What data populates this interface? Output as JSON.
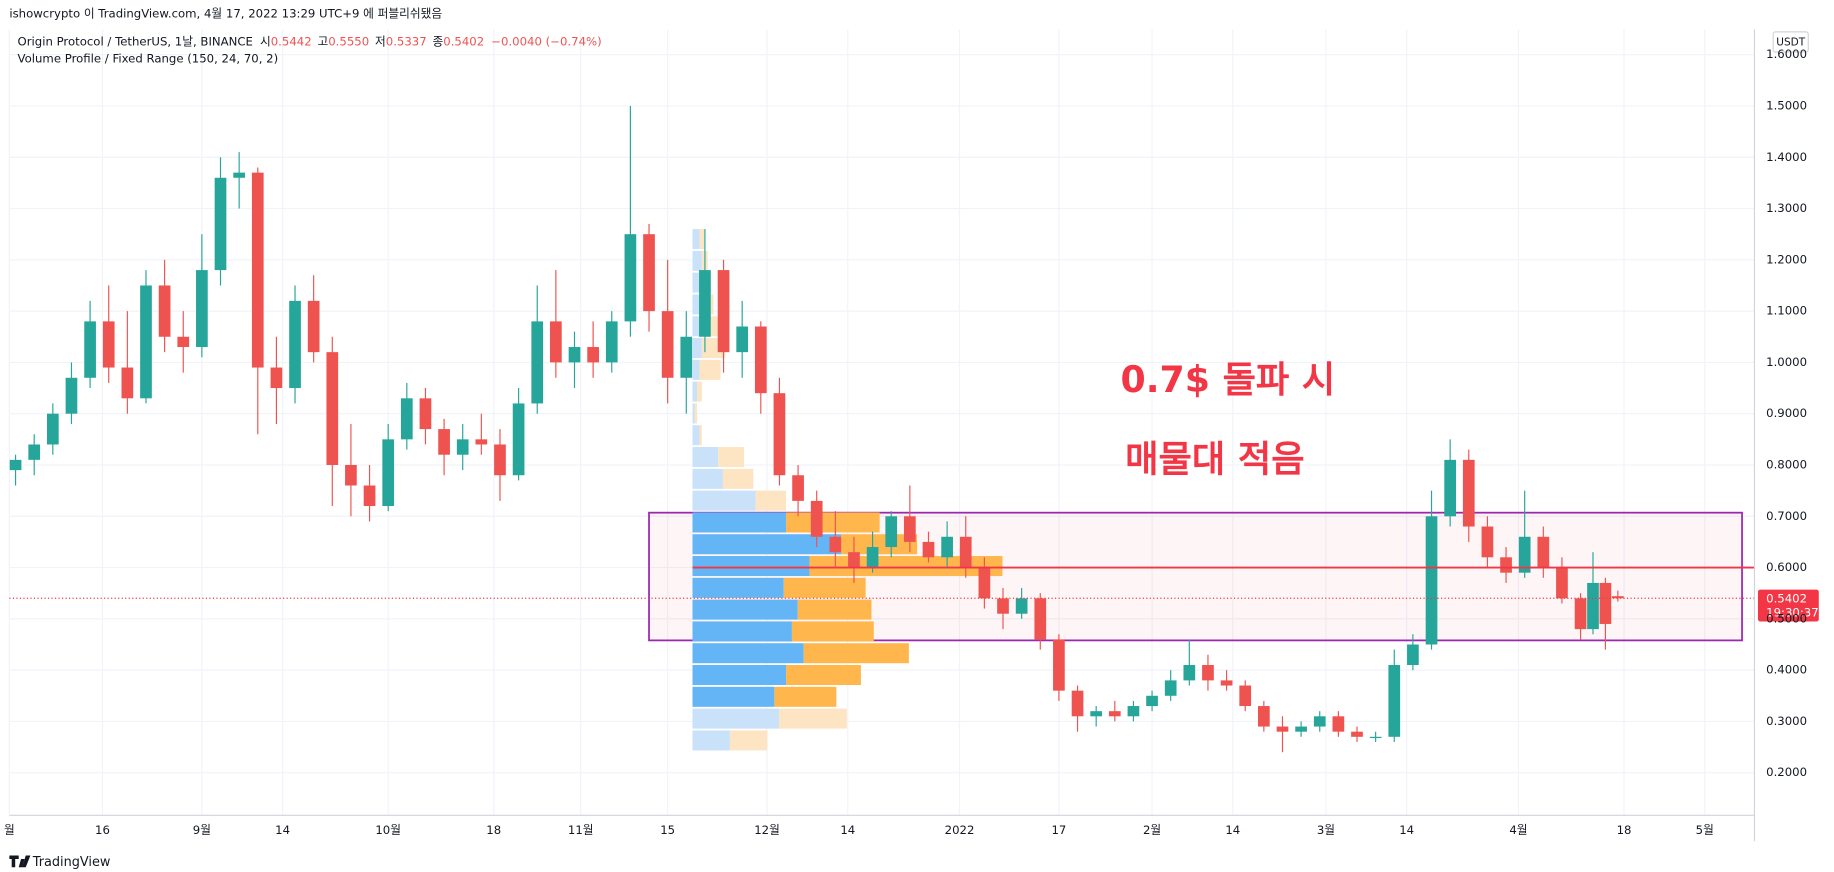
{
  "header": {
    "published": "ishowcrypto 이 TradingView.com, 4월 17, 2022 13:29 UTC+9 에 퍼블리쉬됐음"
  },
  "footer": {
    "brand": "TradingView"
  },
  "chart_data": {
    "type": "candlestick",
    "title": "Origin Protocol / TetherUS, 1날, BINANCE",
    "legend": {
      "open_label": "시",
      "open": "0.5442",
      "high_label": "고",
      "high": "0.5550",
      "low_label": "저",
      "low": "0.5337",
      "close_label": "종",
      "close": "0.5402",
      "change": "−0.0040 (−0.74%)"
    },
    "indicator": "Volume Profile / Fixed Range (150, 24, 70, 2)",
    "annotations": [
      "0.7$ 돌파 시",
      "매물대 적음"
    ],
    "currency": "USDT",
    "countdown": "19:30:37",
    "up_color": "#26a69a",
    "down_color": "#ef5350",
    "x": [
      1,
      4,
      7,
      10,
      13,
      16,
      19,
      22,
      25,
      28,
      31,
      34,
      37,
      40,
      43,
      46,
      49,
      52,
      55,
      58,
      61,
      64,
      67,
      70,
      73,
      76,
      79,
      82,
      85,
      88,
      91,
      94,
      97,
      100,
      103,
      106,
      109,
      112,
      115,
      118,
      121,
      124,
      127,
      130,
      133,
      136,
      139,
      142,
      145,
      148,
      151,
      154,
      157,
      160,
      163,
      166,
      169,
      172,
      175,
      178,
      181,
      184,
      187,
      190,
      193,
      196,
      199,
      202,
      205,
      208,
      211,
      214,
      217,
      220,
      223,
      226,
      229,
      232,
      235,
      238,
      241,
      244,
      247,
      250,
      253,
      255,
      257,
      259
    ],
    "open": [
      0.79,
      0.81,
      0.84,
      0.9,
      0.97,
      1.08,
      0.99,
      0.93,
      1.15,
      1.05,
      1.03,
      1.18,
      1.36,
      1.37,
      0.99,
      0.95,
      1.12,
      1.02,
      0.8,
      0.76,
      0.72,
      0.85,
      0.93,
      0.87,
      0.82,
      0.85,
      0.84,
      0.78,
      0.92,
      1.08,
      1.0,
      1.03,
      1.0,
      1.08,
      1.25,
      1.1,
      0.97,
      1.05,
      1.18,
      1.02,
      1.07,
      0.94,
      0.78,
      0.73,
      0.66,
      0.63,
      0.6,
      0.64,
      0.7,
      0.65,
      0.62,
      0.66,
      0.6,
      0.54,
      0.51,
      0.54,
      0.46,
      0.36,
      0.31,
      0.32,
      0.31,
      0.33,
      0.35,
      0.38,
      0.41,
      0.38,
      0.37,
      0.33,
      0.29,
      0.28,
      0.29,
      0.31,
      0.28,
      0.27,
      0.27,
      0.41,
      0.45,
      0.7,
      0.81,
      0.68,
      0.62,
      0.59,
      0.66,
      0.6,
      0.54,
      0.48,
      0.57,
      0.5442
    ],
    "high": [
      0.82,
      0.86,
      0.92,
      1.0,
      1.12,
      1.15,
      1.1,
      1.18,
      1.2,
      1.1,
      1.25,
      1.4,
      1.41,
      1.38,
      1.05,
      1.15,
      1.17,
      1.05,
      0.88,
      0.8,
      0.88,
      0.96,
      0.95,
      0.89,
      0.88,
      0.9,
      0.87,
      0.95,
      1.15,
      1.18,
      1.06,
      1.08,
      1.1,
      1.5,
      1.27,
      1.2,
      1.1,
      1.26,
      1.2,
      1.12,
      1.08,
      0.97,
      0.8,
      0.75,
      0.71,
      0.66,
      0.67,
      0.71,
      0.76,
      0.67,
      0.69,
      0.7,
      0.62,
      0.56,
      0.56,
      0.55,
      0.47,
      0.37,
      0.33,
      0.34,
      0.34,
      0.36,
      0.4,
      0.46,
      0.43,
      0.4,
      0.38,
      0.34,
      0.31,
      0.3,
      0.32,
      0.32,
      0.29,
      0.28,
      0.44,
      0.47,
      0.75,
      0.85,
      0.83,
      0.7,
      0.64,
      0.75,
      0.68,
      0.62,
      0.55,
      0.63,
      0.58,
      0.555
    ],
    "low": [
      0.76,
      0.78,
      0.82,
      0.88,
      0.95,
      0.96,
      0.9,
      0.92,
      1.02,
      0.98,
      1.01,
      1.15,
      1.3,
      0.86,
      0.88,
      0.92,
      1.0,
      0.72,
      0.7,
      0.69,
      0.71,
      0.83,
      0.84,
      0.78,
      0.79,
      0.82,
      0.73,
      0.77,
      0.9,
      0.97,
      0.95,
      0.97,
      0.98,
      1.05,
      1.06,
      0.92,
      0.9,
      1.02,
      0.98,
      0.97,
      0.9,
      0.76,
      0.7,
      0.64,
      0.6,
      0.57,
      0.59,
      0.62,
      0.63,
      0.61,
      0.6,
      0.58,
      0.52,
      0.48,
      0.5,
      0.44,
      0.34,
      0.28,
      0.29,
      0.3,
      0.3,
      0.32,
      0.34,
      0.37,
      0.36,
      0.36,
      0.32,
      0.28,
      0.24,
      0.27,
      0.28,
      0.27,
      0.26,
      0.26,
      0.26,
      0.4,
      0.44,
      0.68,
      0.65,
      0.6,
      0.57,
      0.58,
      0.58,
      0.53,
      0.46,
      0.47,
      0.44,
      0.5337
    ],
    "close": [
      0.81,
      0.84,
      0.9,
      0.97,
      1.08,
      0.99,
      0.93,
      1.15,
      1.05,
      1.03,
      1.18,
      1.36,
      1.37,
      0.99,
      0.95,
      1.12,
      1.02,
      0.8,
      0.76,
      0.72,
      0.85,
      0.93,
      0.87,
      0.82,
      0.85,
      0.84,
      0.78,
      0.92,
      1.08,
      1.0,
      1.03,
      1.0,
      1.08,
      1.25,
      1.1,
      0.97,
      1.05,
      1.18,
      1.02,
      1.07,
      0.94,
      0.78,
      0.73,
      0.66,
      0.63,
      0.6,
      0.64,
      0.7,
      0.65,
      0.62,
      0.66,
      0.6,
      0.54,
      0.51,
      0.54,
      0.46,
      0.36,
      0.31,
      0.32,
      0.31,
      0.33,
      0.35,
      0.38,
      0.41,
      0.38,
      0.37,
      0.33,
      0.29,
      0.28,
      0.29,
      0.31,
      0.28,
      0.27,
      0.27,
      0.41,
      0.45,
      0.7,
      0.81,
      0.68,
      0.62,
      0.59,
      0.66,
      0.6,
      0.54,
      0.48,
      0.57,
      0.49,
      0.5402
    ],
    "xlim": [
      0,
      281
    ],
    "xticks": [
      {
        "value": 0,
        "label": "월"
      },
      {
        "value": 15,
        "label": "16"
      },
      {
        "value": 31,
        "label": "9월"
      },
      {
        "value": 44,
        "label": "14"
      },
      {
        "value": 61,
        "label": "10월"
      },
      {
        "value": 78,
        "label": "18"
      },
      {
        "value": 92,
        "label": "11월"
      },
      {
        "value": 106,
        "label": "15"
      },
      {
        "value": 122,
        "label": "12월"
      },
      {
        "value": 135,
        "label": "14"
      },
      {
        "value": 153,
        "label": "2022"
      },
      {
        "value": 169,
        "label": "17"
      },
      {
        "value": 184,
        "label": "2월"
      },
      {
        "value": 197,
        "label": "14"
      },
      {
        "value": 212,
        "label": "3월"
      },
      {
        "value": 225,
        "label": "14"
      },
      {
        "value": 243,
        "label": "4월"
      },
      {
        "value": 260,
        "label": "18"
      },
      {
        "value": 273,
        "label": "5월"
      }
    ],
    "ylim": [
      0.117,
      1.649
    ],
    "yticks": [
      {
        "value": 0.2,
        "label": "0.2000"
      },
      {
        "value": 0.3,
        "label": "0.3000"
      },
      {
        "value": 0.4,
        "label": "0.4000"
      },
      {
        "value": 0.5,
        "label": "0.5000"
      },
      {
        "value": 0.6,
        "label": "0.6000"
      },
      {
        "value": 0.7,
        "label": "0.7000"
      },
      {
        "value": 0.8,
        "label": "0.8000"
      },
      {
        "value": 0.9,
        "label": "0.9000"
      },
      {
        "value": 1.0,
        "label": "1.0000"
      },
      {
        "value": 1.1,
        "label": "1.1000"
      },
      {
        "value": 1.2,
        "label": "1.2000"
      },
      {
        "value": 1.3,
        "label": "1.3000"
      },
      {
        "value": 1.4,
        "label": "1.4000"
      },
      {
        "value": 1.5,
        "label": "1.5000"
      },
      {
        "value": 1.6,
        "label": "1.6000"
      }
    ],
    "grid": true,
    "volume_profile": {
      "x_start": 110,
      "bins": [
        0.24,
        0.2825,
        0.325,
        0.3675,
        0.41,
        0.4525,
        0.495,
        0.5375,
        0.58,
        0.6225,
        0.665,
        0.7075,
        0.75,
        0.7925,
        0.835,
        0.8775,
        0.92,
        0.9625,
        1.005,
        1.0475,
        1.09,
        1.1325,
        1.175,
        1.2175,
        1.26
      ],
      "up": [
        32,
        74,
        70,
        80,
        95,
        85,
        90,
        78,
        100,
        127,
        80,
        54,
        26,
        22,
        6,
        2,
        4,
        6,
        8,
        10,
        8,
        10,
        8,
        6
      ],
      "down": [
        32,
        58,
        53,
        64,
        90,
        70,
        63,
        70,
        165,
        65,
        80,
        26,
        26,
        22,
        2,
        2,
        4,
        18,
        20,
        14,
        10,
        6,
        5,
        4
      ],
      "value_area": [
        0.325,
        0.7075
      ],
      "poc": 0.6,
      "up_color": "#64b5f6",
      "down_color": "#ffb74d",
      "up_color_outside": "#c9e2f9",
      "down_color_outside": "#fde5c3",
      "poc_color": "#f23645"
    },
    "box": {
      "x": [
        103,
        279
      ],
      "y": [
        0.458,
        0.707
      ],
      "color": "#9c27b0",
      "fill": "rgba(242,54,69,0.05)"
    }
  }
}
